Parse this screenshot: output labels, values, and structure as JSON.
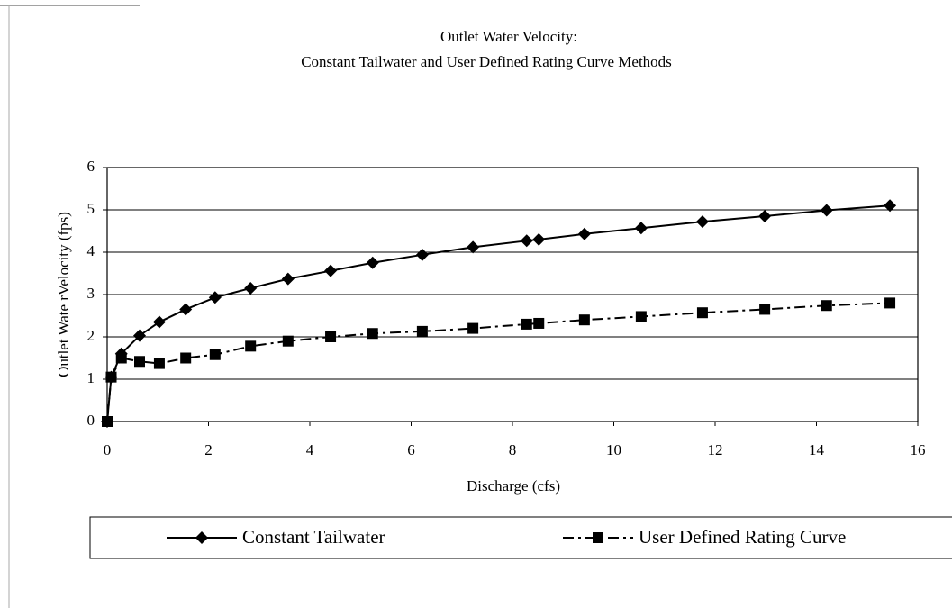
{
  "chart_data": {
    "type": "line",
    "title": [
      "Outlet Water Velocity:",
      "Constant Tailwater and User Defined Rating Curve Methods"
    ],
    "x_label": "Discharge (cfs)",
    "y_label": "Outlet Wate rVelocity (fps)",
    "x": [
      0,
      0.08,
      0.28,
      0.64,
      1.03,
      1.55,
      2.13,
      2.83,
      3.57,
      4.41,
      5.24,
      6.22,
      7.22,
      8.28,
      8.52,
      9.42,
      10.54,
      11.75,
      12.98,
      14.2,
      15.45
    ],
    "series": [
      {
        "name": "Constant Tailwater",
        "color": "#000000",
        "marker": "diamond",
        "dash": "solid",
        "values": [
          0,
          1.05,
          1.6,
          2.03,
          2.35,
          2.65,
          2.93,
          3.15,
          3.37,
          3.56,
          3.75,
          3.94,
          4.12,
          4.27,
          4.3,
          4.43,
          4.57,
          4.72,
          4.85,
          4.99,
          5.1
        ]
      },
      {
        "name": "User Defined Rating Curve",
        "color": "#000000",
        "marker": "square",
        "dash": "dashdot",
        "values": [
          0,
          1.05,
          1.5,
          1.42,
          1.37,
          1.5,
          1.58,
          1.78,
          1.9,
          2.0,
          2.08,
          2.13,
          2.2,
          2.3,
          2.32,
          2.4,
          2.48,
          2.57,
          2.65,
          2.74,
          2.8
        ]
      }
    ],
    "xlim": [
      0,
      16
    ],
    "xticks": [
      0,
      2,
      4,
      6,
      8,
      10,
      12,
      14,
      16
    ],
    "ylim": [
      0,
      6
    ],
    "yticks": [
      0,
      1,
      2,
      3,
      4,
      5,
      6
    ],
    "grid": true,
    "legend": "bottom"
  }
}
